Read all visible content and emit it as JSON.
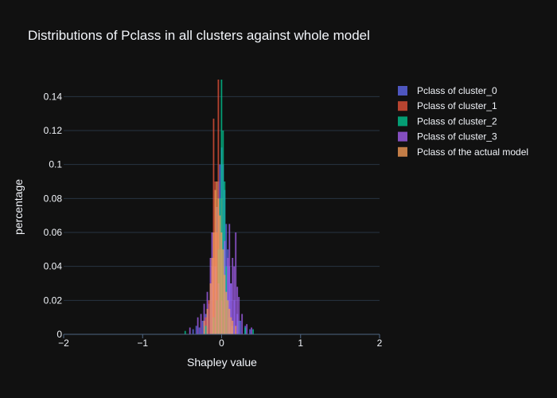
{
  "chart_data": {
    "type": "histogram",
    "title": "Distributions of Pclass in all clusters against whole model",
    "xlabel": "Shapley value",
    "ylabel": "percentage",
    "xlim": [
      -2,
      2
    ],
    "ylim": [
      0,
      0.15
    ],
    "x_ticks": [
      -2,
      -1,
      0,
      1,
      2
    ],
    "x_tick_labels": [
      "−2",
      "−1",
      "0",
      "1",
      "2"
    ],
    "y_ticks": [
      0,
      0.02,
      0.04,
      0.06,
      0.08,
      0.1,
      0.12,
      0.14
    ],
    "y_tick_labels": [
      "0",
      "0.02",
      "0.04",
      "0.06",
      "0.08",
      "0.1",
      "0.12",
      "0.14"
    ],
    "grid": true,
    "legend_position": "right",
    "barmode": "overlay",
    "bin_width": 0.02,
    "series": [
      {
        "name": "Pclass of cluster_0",
        "color": "#636efa",
        "x": [
          -0.36,
          -0.32,
          -0.28,
          -0.24,
          -0.2,
          -0.16,
          -0.12,
          -0.1,
          -0.08,
          -0.06,
          -0.04,
          -0.02,
          0,
          0.02,
          0.04,
          0.06,
          0.08,
          0.1,
          0.12,
          0.16,
          0.2,
          0.24,
          0.3,
          0.36
        ],
        "values": [
          0.003,
          0.005,
          0.004,
          0.008,
          0.012,
          0.018,
          0.03,
          0.045,
          0.06,
          0.075,
          0.09,
          0.1,
          0.11,
          0.1,
          0.085,
          0.065,
          0.05,
          0.04,
          0.03,
          0.02,
          0.012,
          0.008,
          0.005,
          0.003
        ]
      },
      {
        "name": "Pclass of cluster_1",
        "color": "#ef553b",
        "x": [
          -0.2,
          -0.16,
          -0.12,
          -0.1,
          -0.08,
          -0.06,
          -0.04,
          -0.02,
          0,
          0.02,
          0.04,
          0.08,
          0.12
        ],
        "values": [
          0.01,
          0.02,
          0.04,
          0.127,
          0.09,
          0.06,
          0.15,
          0.05,
          0.08,
          0.04,
          0.02,
          0.01,
          0.005
        ]
      },
      {
        "name": "Pclass of cluster_2",
        "color": "#00cc96",
        "x": [
          -0.46,
          -0.2,
          -0.1,
          -0.06,
          -0.04,
          -0.02,
          0,
          0.02,
          0.04,
          0.06,
          0.08,
          0.1,
          0.14,
          0.22,
          0.3,
          0.4
        ],
        "values": [
          0.002,
          0.005,
          0.01,
          0.02,
          0.05,
          0.08,
          0.15,
          0.12,
          0.09,
          0.04,
          0.02,
          0.01,
          0.005,
          0.008,
          0.004,
          0.003
        ]
      },
      {
        "name": "Pclass of cluster_3",
        "color": "#ab63fa",
        "x": [
          -0.4,
          -0.3,
          -0.26,
          -0.22,
          -0.18,
          -0.14,
          -0.12,
          -0.08,
          -0.04,
          0,
          0.04,
          0.08,
          0.1,
          0.12,
          0.14,
          0.16,
          0.18,
          0.2,
          0.22,
          0.26,
          0.32,
          0.38
        ],
        "values": [
          0.004,
          0.01,
          0.012,
          0.018,
          0.025,
          0.045,
          0.06,
          0.04,
          0.03,
          0.02,
          0.055,
          0.045,
          0.065,
          0.03,
          0.045,
          0.04,
          0.06,
          0.028,
          0.022,
          0.012,
          0.006,
          0.004
        ]
      },
      {
        "name": "Pclass of the actual model",
        "color": "#ffa15a",
        "x": [
          -0.22,
          -0.18,
          -0.14,
          -0.12,
          -0.1,
          -0.08,
          -0.06,
          -0.04,
          -0.02,
          0,
          0.02,
          0.04,
          0.06,
          0.08,
          0.1,
          0.12,
          0.14,
          0.18
        ],
        "values": [
          0.008,
          0.015,
          0.03,
          0.045,
          0.06,
          0.085,
          0.09,
          0.08,
          0.07,
          0.06,
          0.05,
          0.035,
          0.025,
          0.02,
          0.015,
          0.01,
          0.008,
          0.005
        ]
      }
    ]
  }
}
